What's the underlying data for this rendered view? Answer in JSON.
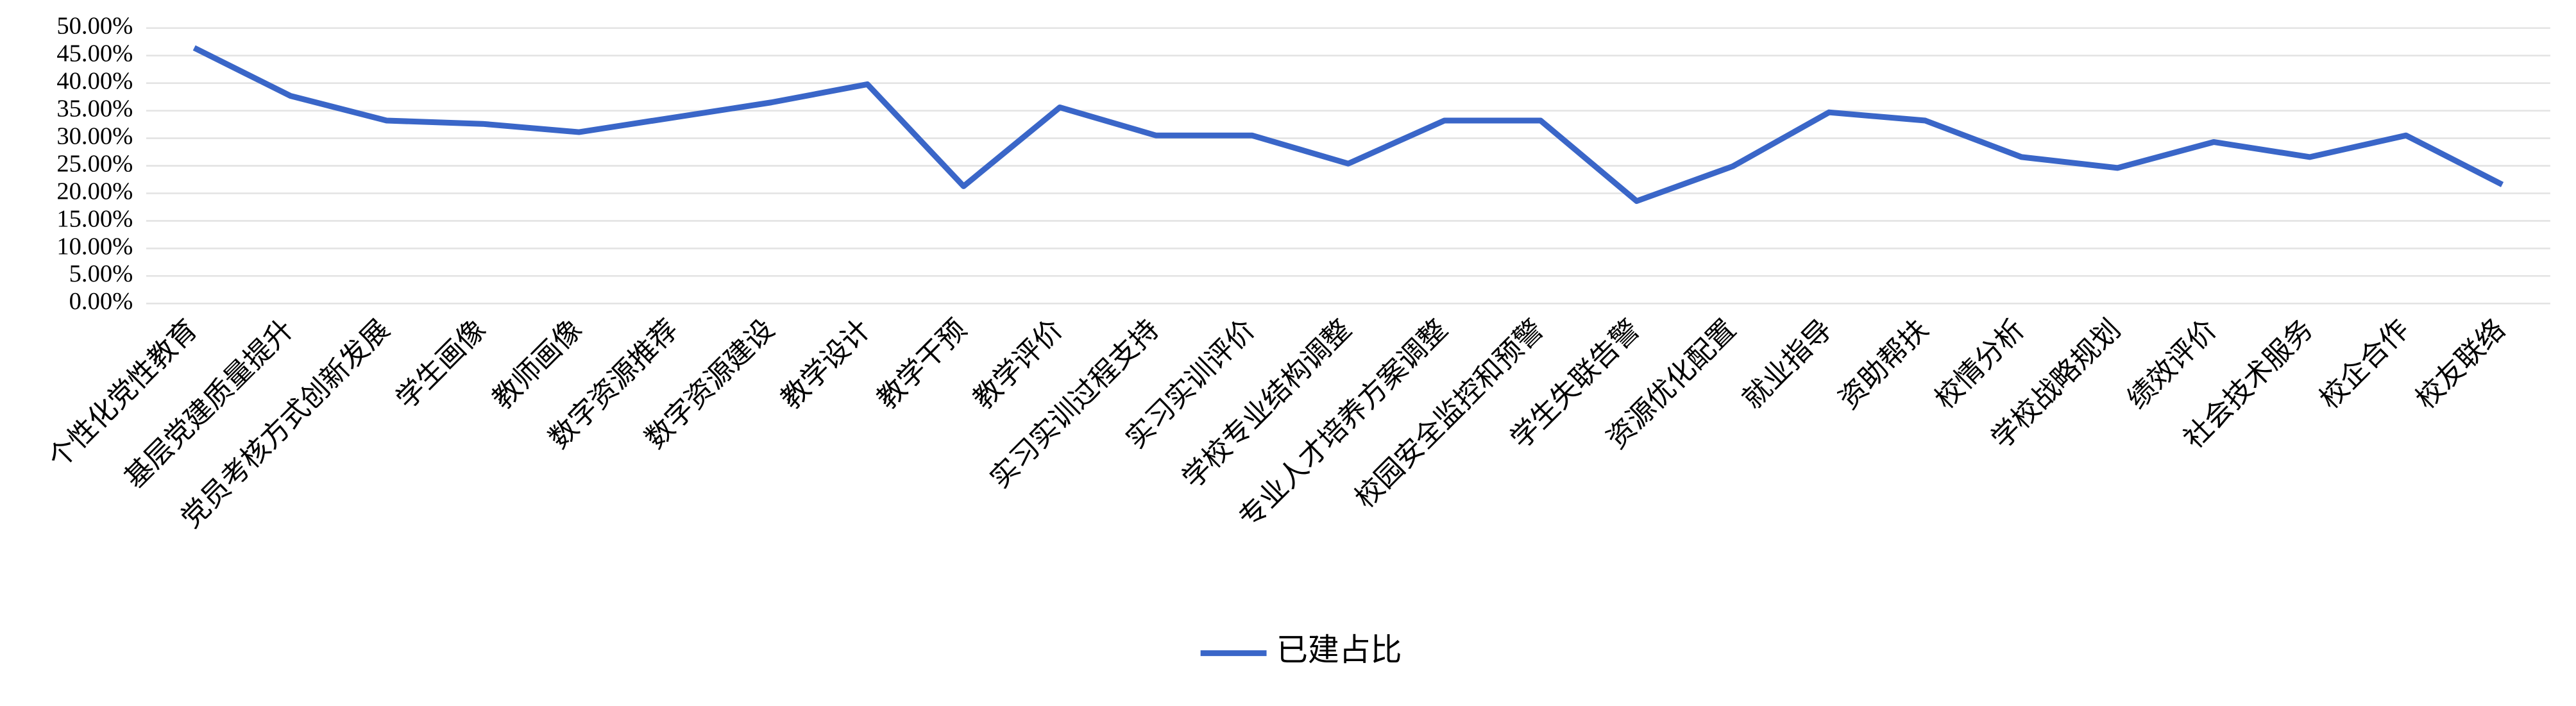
{
  "chart_data": {
    "type": "line",
    "categories": [
      "个性化党性教育",
      "基层党建质量提升",
      "党员考核方式创新发展",
      "学生画像",
      "教师画像",
      "数字资源推荐",
      "数字资源建设",
      "教学设计",
      "教学干预",
      "教学评价",
      "实习实训过程支持",
      "实习实训评价",
      "学校专业结构调整",
      "专业人才培养方案调整",
      "校园安全监控和预警",
      "学生失联告警",
      "资源优化配置",
      "就业指导",
      "资助帮扶",
      "校情分析",
      "学校战略规划",
      "绩效评价",
      "社会技术服务",
      "校企合作",
      "校友联络"
    ],
    "series": [
      {
        "name": "已建占比",
        "color": "#3a66c8",
        "values": [
          46.4,
          37.7,
          33.2,
          32.6,
          31.1,
          33.8,
          36.5,
          39.8,
          21.3,
          35.6,
          30.5,
          30.5,
          25.4,
          33.2,
          33.2,
          18.6,
          24.9,
          34.7,
          33.2,
          26.6,
          24.6,
          29.3,
          26.6,
          30.5,
          21.6
        ]
      }
    ],
    "ylim": [
      0,
      50
    ],
    "yticks": [
      {
        "value": 0,
        "label": "0.00%"
      },
      {
        "value": 5,
        "label": "5.00%"
      },
      {
        "value": 10,
        "label": "10.00%"
      },
      {
        "value": 15,
        "label": "15.00%"
      },
      {
        "value": 20,
        "label": "20.00%"
      },
      {
        "value": 25,
        "label": "25.00%"
      },
      {
        "value": 30,
        "label": "30.00%"
      },
      {
        "value": 35,
        "label": "35.00%"
      },
      {
        "value": 40,
        "label": "40.00%"
      },
      {
        "value": 45,
        "label": "45.00%"
      },
      {
        "value": 50,
        "label": "50.00%"
      }
    ],
    "grid": true,
    "legend": "bottom"
  }
}
